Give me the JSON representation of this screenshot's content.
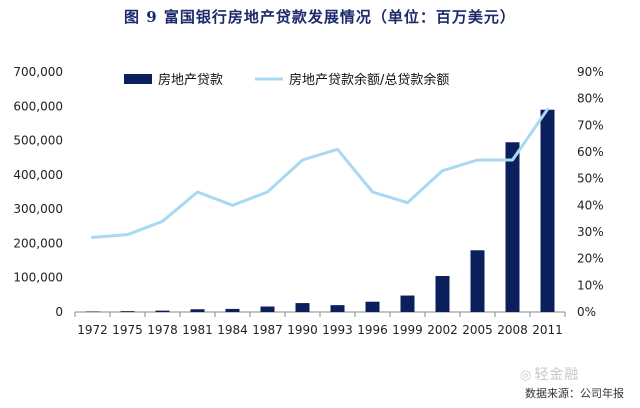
{
  "chart_data": {
    "type": "bar",
    "title": "图 9  富国银行房地产贷款发展情况（单位：百万美元）",
    "categories": [
      "1972",
      "1975",
      "1978",
      "1981",
      "1984",
      "1987",
      "1990",
      "1993",
      "1996",
      "1999",
      "2002",
      "2005",
      "2008",
      "2011"
    ],
    "series": [
      {
        "name": "房地产贷款",
        "type": "bar",
        "axis": "left",
        "color": "#0b1f5c",
        "values": [
          1500,
          2500,
          4000,
          8000,
          9000,
          16000,
          26000,
          20000,
          30000,
          48000,
          105000,
          180000,
          495000,
          590000
        ]
      },
      {
        "name": "房地产贷款余额/总贷款余额",
        "type": "line",
        "axis": "right",
        "color": "#a9d9f2",
        "values": [
          0.28,
          0.29,
          0.34,
          0.45,
          0.4,
          0.45,
          0.57,
          0.61,
          0.45,
          0.41,
          0.53,
          0.57,
          0.57,
          0.76
        ]
      }
    ],
    "y_left": {
      "range": [
        0,
        700000
      ],
      "ticks": [
        "0",
        "100,000",
        "200,000",
        "300,000",
        "400,000",
        "500,000",
        "600,000",
        "700,000"
      ]
    },
    "y_right": {
      "range": [
        0,
        0.9
      ],
      "ticks": [
        "0%",
        "10%",
        "20%",
        "30%",
        "40%",
        "50%",
        "60%",
        "70%",
        "80%",
        "90%"
      ]
    },
    "legend_position": "top"
  },
  "watermark": "轻金融",
  "watermark_icon": "wechat-icon",
  "source": "数据来源：公司年报"
}
